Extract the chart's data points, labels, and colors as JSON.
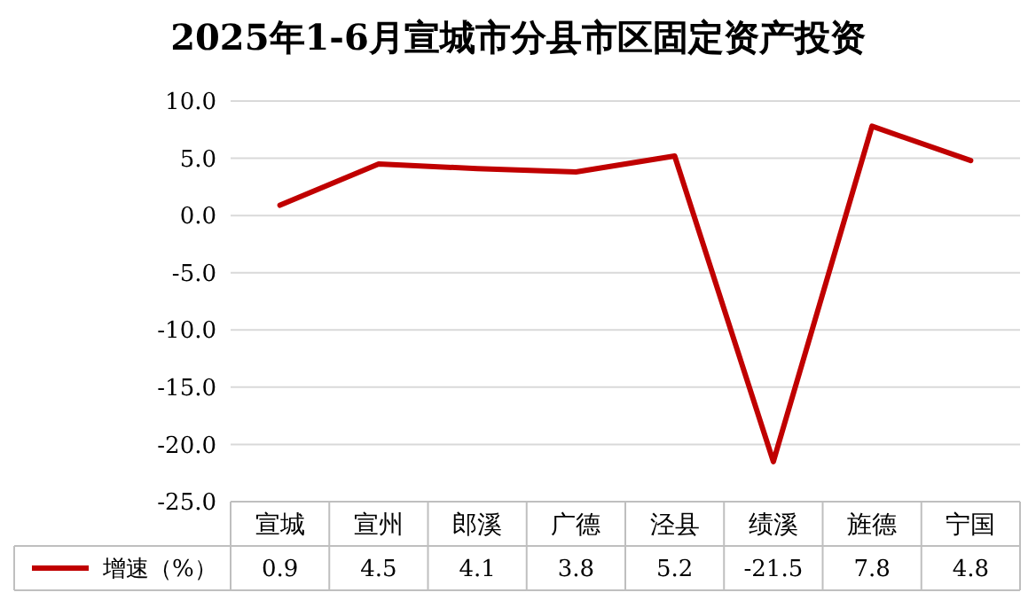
{
  "chart_data": {
    "type": "line",
    "title": "2025年1-6月宣城市分县市区固定资产投资",
    "categories": [
      "宣城",
      "宣州",
      "郎溪",
      "广德",
      "泾县",
      "绩溪",
      "旌德",
      "宁国"
    ],
    "series": [
      {
        "name": "增速（%）",
        "color": "#c00000",
        "values": [
          0.9,
          4.5,
          4.1,
          3.8,
          5.2,
          -21.5,
          7.8,
          4.8
        ]
      }
    ],
    "ylim": [
      -25,
      10
    ],
    "yticks": [
      {
        "value": -25,
        "label": "-25.0"
      },
      {
        "value": -20,
        "label": "-20.0"
      },
      {
        "value": -15,
        "label": "-15.0"
      },
      {
        "value": -10,
        "label": "-10.0"
      },
      {
        "value": -5,
        "label": "-5.0"
      },
      {
        "value": 0,
        "label": "0.0"
      },
      {
        "value": 5,
        "label": "5.0"
      },
      {
        "value": 10,
        "label": "10.0"
      }
    ],
    "grid": "y",
    "legend": "bottom",
    "data_labels": true,
    "marker": "none",
    "line_style": "solid"
  }
}
